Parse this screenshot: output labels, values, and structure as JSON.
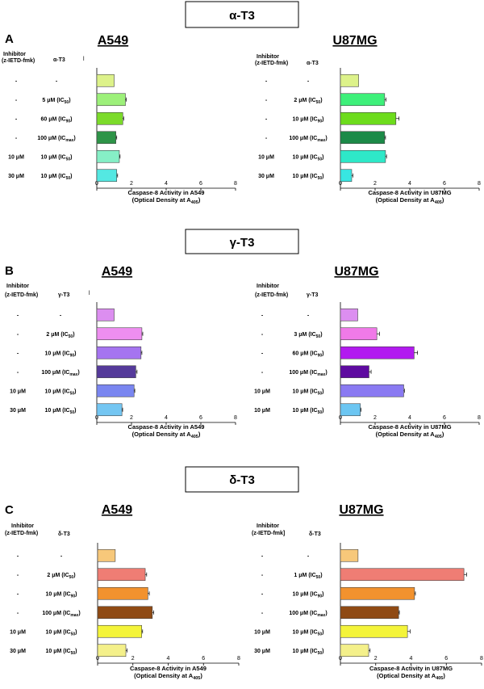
{
  "figure": {
    "sections": [
      {
        "letter": "A",
        "title": "α-T3"
      },
      {
        "letter": "B",
        "title": "γ-T3"
      },
      {
        "letter": "C",
        "title": "δ-T3"
      }
    ],
    "col_header_inhibitor_1": "Inhibitor",
    "col_header_inhibitor_2": "(z-IETD-fmk)",
    "col_header_inhibitor_2_alt": "(z-IETD-fmk]",
    "row_marker": "l"
  },
  "chart_data": [
    {
      "type": "bar",
      "orientation": "horizontal",
      "title": "A549",
      "drug_header": "α-T3",
      "xlabel_line1": "Caspase-8 Activity in A549",
      "xlabel_line2": "(Optical Density at A405)",
      "xlim": [
        0,
        8
      ],
      "xticks": [
        0,
        2,
        4,
        6,
        8
      ],
      "inhibitor": [
        "-",
        "-",
        "-",
        "-",
        "10 μM",
        "30 μM"
      ],
      "categories": [
        "-",
        "5 μM (IC50)",
        "60 μM (IC90)",
        "100 μM (ICmax)",
        "10 μM (IC50)",
        "10 μM (IC50)"
      ],
      "values": [
        1.0,
        1.65,
        1.5,
        1.1,
        1.3,
        1.15
      ],
      "errors": [
        0,
        0.05,
        0.05,
        0.05,
        0.04,
        0.05
      ],
      "colors": [
        "#ddf28a",
        "#9df07a",
        "#7cdb2a",
        "#2e9448",
        "#86efc6",
        "#54e8e2"
      ]
    },
    {
      "type": "bar",
      "orientation": "horizontal",
      "title": "U87MG",
      "drug_header": "α-T3",
      "xlabel_line1": "Caspase-8 Activity in U87MG",
      "xlabel_line2": "(Optical Density at A405)",
      "xlim": [
        0,
        8
      ],
      "xticks": [
        0,
        2,
        4,
        6,
        8
      ],
      "inhibitor": [
        "-",
        "-",
        "-",
        "-",
        "10 μM",
        "30 μM"
      ],
      "categories": [
        "-",
        "2 μM (IC50)",
        "10 μM (IC90)",
        "100 μM (ICmax)",
        "10 μM (IC50)",
        "10 μM (IC50)"
      ],
      "values": [
        1.05,
        2.55,
        3.2,
        2.55,
        2.6,
        0.65
      ],
      "errors": [
        0,
        0.08,
        0.18,
        0.05,
        0.06,
        0.07
      ],
      "colors": [
        "#ddf28a",
        "#3ef07a",
        "#6ddc1c",
        "#1c8a48",
        "#2ee8c8",
        "#38e6e2"
      ]
    },
    {
      "type": "bar",
      "orientation": "horizontal",
      "title": "A549",
      "drug_header": "γ-T3",
      "xlabel_line1": "Caspase-8 Activity in A549",
      "xlabel_line2": "(Optical Density at A405)",
      "xlim": [
        0,
        8
      ],
      "xticks": [
        0,
        2,
        4,
        6,
        8
      ],
      "inhibitor": [
        "-",
        "-",
        "-",
        "-",
        "10 μM",
        "30 μM"
      ],
      "categories": [
        "-",
        "2 μM (IC50)",
        "10 μM (IC90)",
        "100 μM (ICmax)",
        "10 μM (IC50)",
        "10 μM (IC50)"
      ],
      "values": [
        1.0,
        2.6,
        2.55,
        2.25,
        2.15,
        1.45
      ],
      "errors": [
        0,
        0.05,
        0.05,
        0.07,
        0.04,
        0.04
      ],
      "colors": [
        "#dc8ef0",
        "#ee8ef0",
        "#a574f0",
        "#553a9a",
        "#7a86f0",
        "#74c6f2"
      ]
    },
    {
      "type": "bar",
      "orientation": "horizontal",
      "title": "U87MG",
      "drug_header": "γ-T3",
      "xlabel_line1": "Caspase-8 Activity in U87MG",
      "xlabel_line2": "(Optical Density at A405)",
      "xlim": [
        0,
        8
      ],
      "xticks": [
        0,
        2,
        4,
        6,
        8
      ],
      "inhibitor": [
        "-",
        "-",
        "-",
        "-",
        "10 μM",
        "10 μM"
      ],
      "categories": [
        "-",
        "3 μM (IC50)",
        "60 μM (IC90)",
        "100 μM (ICmax)",
        "10 μM (IC50)",
        "10 μM (IC50)"
      ],
      "values": [
        1.0,
        2.1,
        4.25,
        1.65,
        3.65,
        1.15
      ],
      "errors": [
        0,
        0.15,
        0.2,
        0.12,
        0.04,
        0.04
      ],
      "colors": [
        "#dc8ef0",
        "#f07ae8",
        "#b21af0",
        "#5e0aa0",
        "#8a7af2",
        "#6cc6f2"
      ]
    },
    {
      "type": "bar",
      "orientation": "horizontal",
      "title": "A549",
      "drug_header": "δ-T3",
      "xlabel_line1": "Caspase-8 Activity in A549",
      "xlabel_line2": "(Optical Density at A405)",
      "xlim": [
        0,
        8
      ],
      "xticks": [
        0,
        2,
        4,
        6,
        8
      ],
      "inhibitor": [
        "-",
        "-",
        "-",
        "-",
        "10 μM",
        "30 μM"
      ],
      "categories": [
        "-",
        "2 μM (IC50)",
        "10 μM (IC90)",
        "100 μM (ICmax)",
        "10 μM (IC50)",
        "10 μM (IC50)"
      ],
      "values": [
        1.0,
        2.7,
        2.85,
        3.1,
        2.5,
        1.6
      ],
      "errors": [
        0,
        0.08,
        0.08,
        0.08,
        0.05,
        0.07
      ],
      "colors": [
        "#f7c87a",
        "#ef7d74",
        "#f2922e",
        "#8f4a14",
        "#f4f43a",
        "#f4f08a"
      ]
    },
    {
      "type": "bar",
      "orientation": "horizontal",
      "title": "U87MG",
      "drug_header": "δ-T3",
      "xlabel_line1": "Caspase-8 Activity in U87MG",
      "xlabel_line2": "(Optical Density at A405)",
      "xlim": [
        0,
        8
      ],
      "xticks": [
        0,
        2,
        4,
        6,
        8
      ],
      "inhibitor": [
        "-",
        "-",
        "-",
        "-",
        "10 μM",
        "30 μM"
      ],
      "categories": [
        "-",
        "1 μM (IC50)",
        "10 μM (IC90)",
        "100 μM (ICmax)",
        "10 μM (IC50)",
        "10 μM (IC50)"
      ],
      "values": [
        1.0,
        7.0,
        4.2,
        3.3,
        3.8,
        1.6
      ],
      "errors": [
        0,
        0.15,
        0.05,
        0.04,
        0.15,
        0.08
      ],
      "colors": [
        "#f7c87a",
        "#ef7d74",
        "#f2922e",
        "#8f4a14",
        "#f4f43a",
        "#f4f08a"
      ]
    }
  ]
}
